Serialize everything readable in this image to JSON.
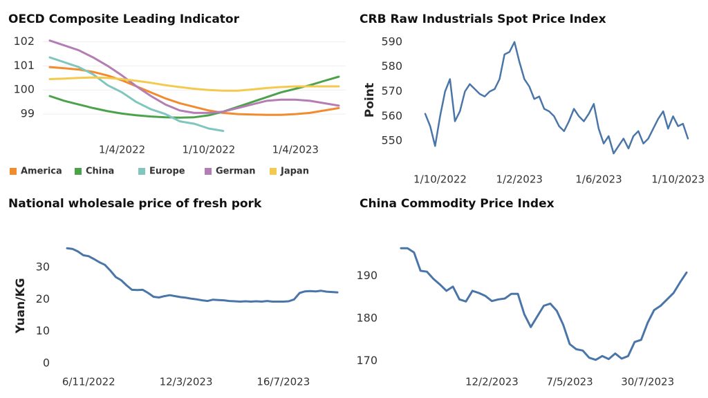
{
  "chart_data": [
    {
      "type": "line",
      "title": "OECD Composite Leading Indicator",
      "x": [
        "1/11/2021",
        "1/12/2021",
        "1/1/2022",
        "1/2/2022",
        "1/3/2022",
        "1/4/2022",
        "1/5/2022",
        "1/6/2022",
        "1/7/2022",
        "1/8/2022",
        "1/9/2022",
        "1/10/2022",
        "1/11/2022",
        "1/12/2022",
        "1/1/2023",
        "1/2/2023",
        "1/3/2023",
        "1/4/2023",
        "1/5/2023",
        "1/6/2023",
        "1/7/2023"
      ],
      "series": [
        {
          "name": "America",
          "color": "#f28a2e",
          "values": [
            100.95,
            100.9,
            100.85,
            100.75,
            100.6,
            100.4,
            100.15,
            99.9,
            99.65,
            99.45,
            99.3,
            99.15,
            99.05,
            99.0,
            98.98,
            98.97,
            98.97,
            99.0,
            99.05,
            99.15,
            99.25
          ]
        },
        {
          "name": "China",
          "color": "#4ba24b",
          "values": [
            99.75,
            99.55,
            99.4,
            99.25,
            99.12,
            99.02,
            98.95,
            98.9,
            98.87,
            98.85,
            98.87,
            98.95,
            99.1,
            99.3,
            99.5,
            99.7,
            99.9,
            100.05,
            100.2,
            100.38,
            100.55
          ]
        },
        {
          "name": "Europe",
          "color": "#80c6bf",
          "values": [
            101.35,
            101.15,
            100.95,
            100.65,
            100.2,
            99.9,
            99.5,
            99.2,
            99.0,
            98.7,
            98.6,
            98.4,
            98.3,
            null,
            null,
            null,
            null,
            null,
            null,
            null,
            null
          ]
        },
        {
          "name": "German",
          "color": "#b47db3",
          "values": [
            102.05,
            101.85,
            101.65,
            101.35,
            101.0,
            100.6,
            100.15,
            99.75,
            99.4,
            99.15,
            99.05,
            99.05,
            99.1,
            99.25,
            99.4,
            99.55,
            99.6,
            99.6,
            99.55,
            99.45,
            99.35
          ]
        },
        {
          "name": "Japan",
          "color": "#f3c94e",
          "values": [
            100.45,
            100.47,
            100.5,
            100.52,
            100.5,
            100.45,
            100.38,
            100.3,
            100.2,
            100.12,
            100.05,
            100.0,
            99.97,
            99.97,
            100.02,
            100.08,
            100.12,
            100.15,
            100.15,
            100.15,
            100.15
          ]
        }
      ],
      "xticks": [
        "1/4/2022",
        "1/10/2022",
        "1/4/2023"
      ],
      "ylim": [
        98,
        102.3
      ],
      "yticks": [
        99,
        100,
        101,
        102
      ],
      "grid": true,
      "legend": "bottom"
    },
    {
      "type": "line",
      "title": "CRB Raw Industrials Spot Price Index",
      "ylabel": "Point",
      "color": "#4a75a8",
      "x": [
        "8/9/2022",
        "16/9/2022",
        "23/9/2022",
        "1/10/2022",
        "8/10/2022",
        "16/10/2022",
        "23/10/2022",
        "1/11/2022",
        "8/11/2022",
        "16/11/2022",
        "23/11/2022",
        "1/12/2022",
        "8/12/2022",
        "16/12/2022",
        "23/12/2022",
        "1/1/2023",
        "8/1/2023",
        "16/1/2023",
        "23/1/2023",
        "1/2/2023",
        "8/2/2023",
        "16/2/2023",
        "23/2/2023",
        "1/3/2023",
        "8/3/2023",
        "16/3/2023",
        "23/3/2023",
        "1/4/2023",
        "8/4/2023",
        "16/4/2023",
        "23/4/2023",
        "1/5/2023",
        "8/5/2023",
        "16/5/2023",
        "23/5/2023",
        "1/6/2023",
        "8/6/2023",
        "16/6/2023",
        "23/6/2023",
        "1/7/2023",
        "8/7/2023",
        "16/7/2023",
        "23/7/2023",
        "1/8/2023",
        "8/8/2023",
        "16/8/2023",
        "23/8/2023",
        "1/9/2023",
        "8/9/2023",
        "16/9/2023",
        "23/9/2023",
        "1/10/2023",
        "8/10/2023",
        "16/10/2023"
      ],
      "values": [
        561,
        556,
        548,
        560,
        570,
        575,
        558,
        562,
        570,
        573,
        571,
        569,
        568,
        570,
        571,
        575,
        585,
        586,
        590,
        582,
        575,
        572,
        567,
        568,
        563,
        562,
        560,
        556,
        554,
        558,
        563,
        560,
        558,
        561,
        565,
        555,
        549,
        552,
        545,
        548,
        551,
        547,
        552,
        554,
        549,
        551,
        555,
        559,
        562,
        555,
        560,
        556,
        557,
        551
      ],
      "xticks": [
        "1/10/2022",
        "1/2/2023",
        "1/6/2023",
        "1/10/2023"
      ],
      "ylim": [
        540,
        593
      ],
      "yticks": [
        550,
        560,
        570,
        580,
        590
      ],
      "grid": false
    },
    {
      "type": "line",
      "title": "National wholesale price of fresh pork",
      "ylabel": "Yuan/KG",
      "color": "#4a75a8",
      "x": [
        "9/10/2022",
        "16/10/2022",
        "23/10/2022",
        "30/10/2022",
        "6/11/2022",
        "13/11/2022",
        "20/11/2022",
        "27/11/2022",
        "4/12/2022",
        "11/12/2022",
        "18/12/2022",
        "25/12/2022",
        "1/1/2023",
        "8/1/2023",
        "15/1/2023",
        "22/1/2023",
        "29/1/2023",
        "5/2/2023",
        "12/2/2023",
        "19/2/2023",
        "26/2/2023",
        "5/3/2023",
        "12/3/2023",
        "19/3/2023",
        "26/3/2023",
        "2/4/2023",
        "9/4/2023",
        "16/4/2023",
        "23/4/2023",
        "30/4/2023",
        "7/5/2023",
        "14/5/2023",
        "21/5/2023",
        "28/5/2023",
        "4/6/2023",
        "11/6/2023",
        "18/6/2023",
        "25/6/2023",
        "2/7/2023",
        "9/7/2023",
        "16/7/2023",
        "23/7/2023",
        "30/7/2023",
        "6/8/2023",
        "13/8/2023",
        "20/8/2023",
        "27/8/2023",
        "3/9/2023",
        "10/9/2023",
        "17/9/2023",
        "24/9/2023"
      ],
      "values": [
        36,
        35.8,
        35,
        33.8,
        33.5,
        32.6,
        31.6,
        30.8,
        29,
        27,
        26,
        24.4,
        23,
        22.9,
        23,
        22,
        20.8,
        20.6,
        21,
        21.3,
        21,
        20.7,
        20.5,
        20.2,
        20,
        19.7,
        19.5,
        19.9,
        19.8,
        19.7,
        19.5,
        19.4,
        19.3,
        19.4,
        19.3,
        19.4,
        19.3,
        19.5,
        19.3,
        19.3,
        19.3,
        19.4,
        20,
        22,
        22.5,
        22.6,
        22.5,
        22.7,
        22.4,
        22.3,
        22.2
      ],
      "xticks": [
        "6/11/2022",
        "12/3/2023",
        "16/7/2023"
      ],
      "ylim": [
        -2,
        38
      ],
      "yticks": [
        0,
        10,
        20,
        30
      ],
      "grid": false
    },
    {
      "type": "line",
      "title": "China Commodity Price Index",
      "color": "#4a75a8",
      "x": [
        "6/11/2022",
        "13/11/2022",
        "20/11/2022",
        "27/11/2022",
        "4/12/2022",
        "11/12/2022",
        "18/12/2022",
        "25/12/2022",
        "1/1/2023",
        "8/1/2023",
        "15/1/2023",
        "22/1/2023",
        "29/1/2023",
        "5/2/2023",
        "12/2/2023",
        "19/2/2023",
        "26/2/2023",
        "5/3/2023",
        "12/3/2023",
        "19/3/2023",
        "26/3/2023",
        "2/4/2023",
        "9/4/2023",
        "16/4/2023",
        "23/4/2023",
        "30/4/2023",
        "7/5/2023",
        "14/5/2023",
        "21/5/2023",
        "28/5/2023",
        "4/6/2023",
        "11/6/2023",
        "18/6/2023",
        "25/6/2023",
        "2/7/2023",
        "9/7/2023",
        "16/7/2023",
        "23/7/2023",
        "30/7/2023",
        "6/8/2023",
        "13/8/2023",
        "20/8/2023",
        "27/8/2023",
        "3/9/2023",
        "10/9/2023"
      ],
      "values": [
        196.5,
        196.5,
        195.5,
        191.2,
        191,
        189.3,
        188,
        186.5,
        187.5,
        184.5,
        184,
        186.5,
        186,
        185.3,
        184.1,
        184.5,
        184.7,
        185.8,
        185.8,
        181,
        178,
        180.5,
        183,
        183.5,
        181.8,
        178.5,
        174,
        172.8,
        172.5,
        170.8,
        170.3,
        171.2,
        170.5,
        171.8,
        170.6,
        171.2,
        174.5,
        175,
        179,
        182,
        183,
        184.5,
        186,
        188.5,
        190.8
      ],
      "xticks": [
        "12/2/2023",
        "7/5/2023",
        "30/7/2023"
      ],
      "ylim": [
        168,
        198
      ],
      "yticks": [
        170,
        180,
        190
      ],
      "grid": false
    }
  ]
}
